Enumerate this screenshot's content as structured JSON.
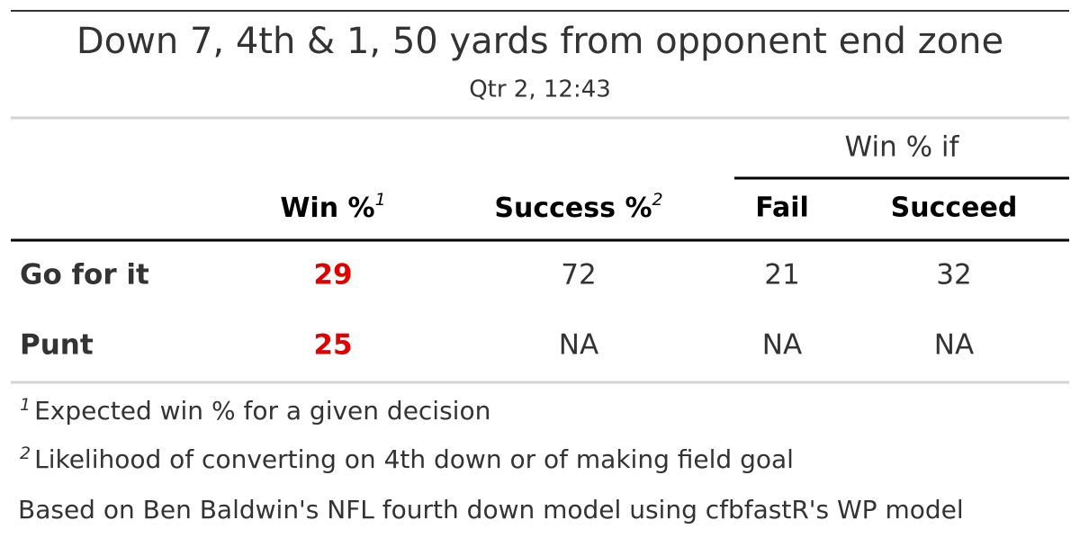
{
  "header": {
    "title": "Down 7, 4th & 1, 50 yards from opponent end zone",
    "subtitle": "Qtr 2, 12:43"
  },
  "table": {
    "spanner": "Win % if",
    "columns": [
      {
        "label": "Win %",
        "mark": "1"
      },
      {
        "label": "Success %",
        "mark": "2"
      },
      {
        "label": "Fail"
      },
      {
        "label": "Succeed"
      }
    ],
    "rows": [
      {
        "label": "Go for it",
        "cells": [
          "29",
          "72",
          "21",
          "32"
        ]
      },
      {
        "label": "Punt",
        "cells": [
          "25",
          "NA",
          "NA",
          "NA"
        ]
      }
    ]
  },
  "footnotes": [
    {
      "mark": "1",
      "text": "Expected win % for a given decision"
    },
    {
      "mark": "2",
      "text": "Likelihood of converting on 4th down or of making field goal"
    }
  ],
  "source_note": "Based on Ben Baldwin's NFL fourth down model using cfbfastR's WP model"
}
